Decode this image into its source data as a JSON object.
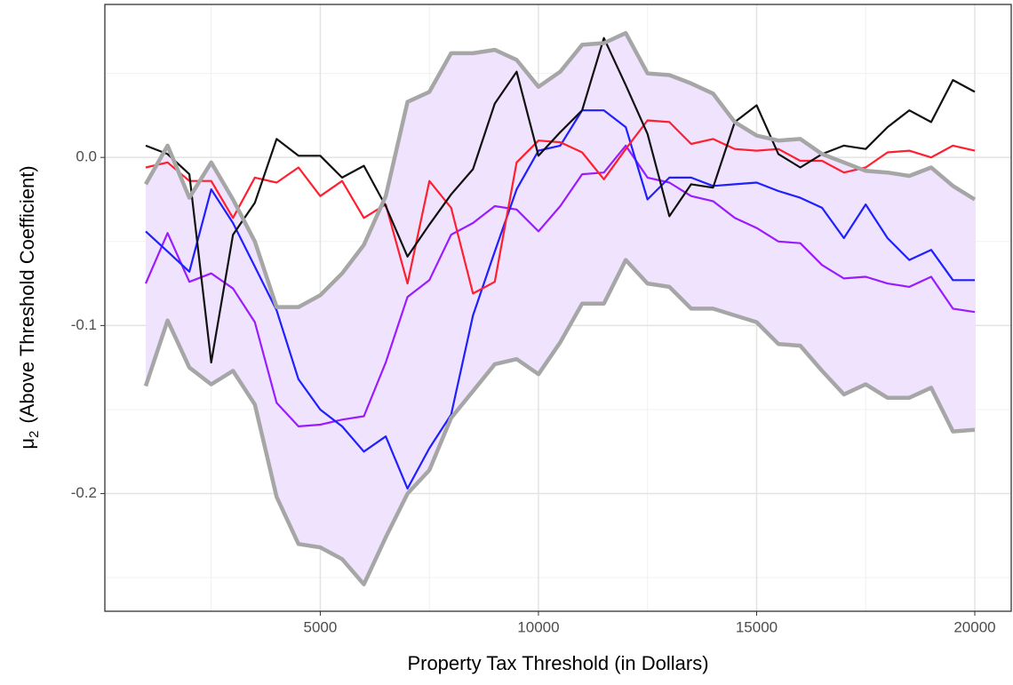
{
  "chart_data": {
    "type": "line",
    "xlabel": "Property Tax Threshold (in Dollars)",
    "ylabel": {
      "symbol": "μ",
      "subscript": "2",
      "text": "(Above Threshold Coefficient)"
    },
    "x": [
      1000,
      1500,
      2000,
      2500,
      3000,
      3500,
      4000,
      4500,
      5000,
      5500,
      6000,
      6500,
      7000,
      7500,
      8000,
      8500,
      9000,
      9500,
      10000,
      10500,
      11000,
      11500,
      12000,
      12500,
      13000,
      13500,
      14000,
      14500,
      15000,
      15500,
      16000,
      16500,
      17000,
      17500,
      18000,
      18500,
      19000,
      19500,
      20000
    ],
    "xlim": [
      63,
      20835
    ],
    "xticks": [
      5000,
      10000,
      15000,
      20000
    ],
    "x_minor_grid": [
      2500,
      7500,
      12500,
      17500
    ],
    "ylim": [
      -0.27,
      0.091
    ],
    "yticks": [
      -0.2,
      -0.1,
      {
        "value": 0,
        "label": "0.0"
      }
    ],
    "y_minor_grid": [
      -0.25,
      -0.15,
      -0.05,
      0.05
    ],
    "grid": true,
    "band": {
      "fill": "#efe3fd",
      "line_color": "#a6a6a6",
      "upper": [
        -0.016,
        0.007,
        -0.024,
        -0.003,
        -0.025,
        -0.05,
        -0.089,
        -0.089,
        -0.082,
        -0.069,
        -0.052,
        -0.023,
        0.033,
        0.039,
        0.062,
        0.062,
        0.064,
        0.058,
        0.042,
        0.051,
        0.067,
        0.068,
        0.074,
        0.05,
        0.049,
        0.044,
        0.038,
        0.021,
        0.013,
        0.01,
        0.011,
        0.002,
        -0.003,
        -0.008,
        -0.009,
        -0.011,
        -0.006,
        -0.017,
        -0.025
      ],
      "lower": [
        -0.136,
        -0.097,
        -0.125,
        -0.135,
        -0.127,
        -0.147,
        -0.202,
        -0.23,
        -0.232,
        -0.239,
        -0.254,
        -0.226,
        -0.2,
        -0.186,
        -0.155,
        -0.139,
        -0.123,
        -0.12,
        -0.129,
        -0.11,
        -0.087,
        -0.087,
        -0.061,
        -0.075,
        -0.077,
        -0.09,
        -0.09,
        -0.094,
        -0.098,
        -0.111,
        -0.112,
        -0.127,
        -0.141,
        -0.135,
        -0.143,
        -0.143,
        -0.137,
        -0.163,
        -0.162
      ]
    },
    "series": [
      {
        "color": "#9b1bff",
        "values": [
          -0.075,
          -0.045,
          -0.074,
          -0.069,
          -0.078,
          -0.098,
          -0.146,
          -0.16,
          -0.159,
          -0.156,
          -0.154,
          -0.122,
          -0.083,
          -0.073,
          -0.046,
          -0.039,
          -0.029,
          -0.031,
          -0.044,
          -0.029,
          -0.01,
          -0.009,
          0.007,
          -0.012,
          -0.015,
          -0.023,
          -0.026,
          -0.036,
          -0.042,
          -0.05,
          -0.051,
          -0.064,
          -0.072,
          -0.071,
          -0.075,
          -0.077,
          -0.071,
          -0.09,
          -0.092
        ]
      },
      {
        "color": "#1f1fff",
        "values": [
          -0.044,
          -0.056,
          -0.068,
          -0.019,
          -0.039,
          -0.065,
          -0.091,
          -0.132,
          -0.15,
          -0.16,
          -0.175,
          -0.166,
          -0.197,
          -0.173,
          -0.153,
          -0.094,
          -0.056,
          -0.019,
          0.004,
          0.007,
          0.028,
          0.028,
          0.018,
          -0.025,
          -0.012,
          -0.012,
          -0.017,
          -0.016,
          -0.015,
          -0.02,
          -0.024,
          -0.03,
          -0.048,
          -0.028,
          -0.048,
          -0.061,
          -0.055,
          -0.073,
          -0.073
        ]
      },
      {
        "color": "#ff1f2f",
        "values": [
          -0.006,
          -0.003,
          -0.014,
          -0.014,
          -0.036,
          -0.012,
          -0.015,
          -0.006,
          -0.023,
          -0.014,
          -0.036,
          -0.028,
          -0.075,
          -0.014,
          -0.03,
          -0.081,
          -0.074,
          -0.003,
          0.01,
          0.009,
          0.003,
          -0.013,
          0.005,
          0.022,
          0.021,
          0.008,
          0.011,
          0.005,
          0.004,
          0.005,
          -0.002,
          -0.002,
          -0.009,
          -0.006,
          0.003,
          0.004,
          0,
          0.007,
          0.004
        ]
      },
      {
        "color": "#111111",
        "values": [
          0.007,
          0.002,
          -0.01,
          -0.122,
          -0.046,
          -0.027,
          0.011,
          0.001,
          0.001,
          -0.012,
          -0.005,
          -0.029,
          -0.059,
          -0.04,
          -0.022,
          -0.007,
          0.032,
          0.051,
          0.001,
          0.015,
          0.028,
          0.071,
          0.043,
          0.014,
          -0.035,
          -0.016,
          -0.018,
          0.021,
          0.031,
          0.002,
          -0.006,
          0.002,
          0.007,
          0.005,
          0.018,
          0.028,
          0.021,
          0.046,
          0.039
        ]
      }
    ]
  }
}
